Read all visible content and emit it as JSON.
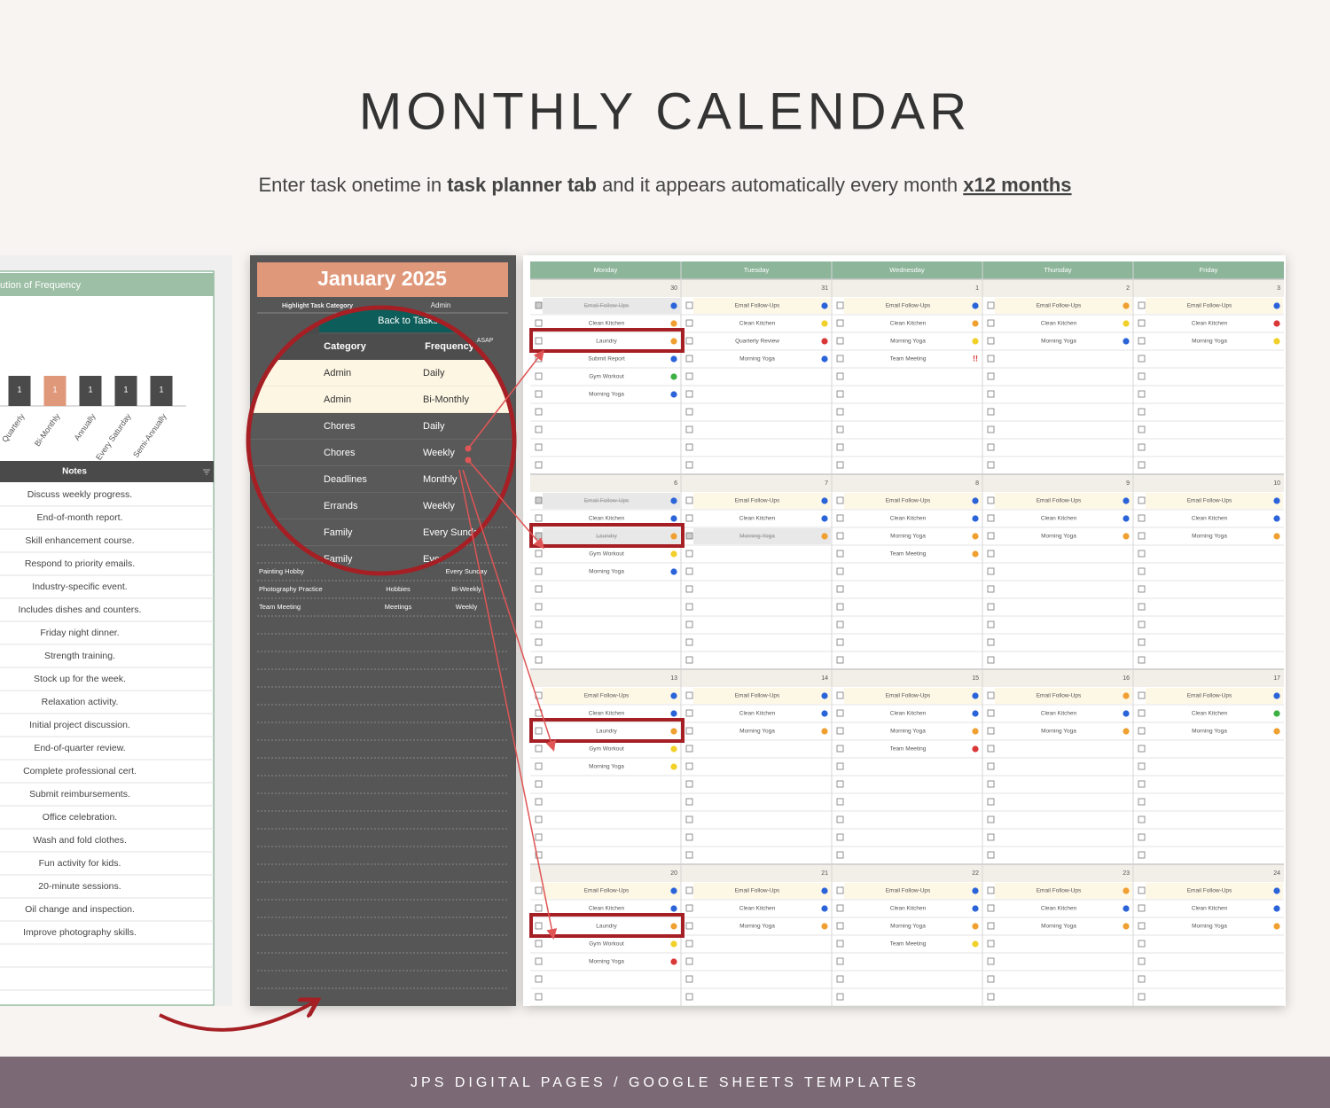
{
  "header": {
    "title": "MONTHLY CALENDAR",
    "subtitle": [
      {
        "text": "Enter task onetime in ",
        "bold": false,
        "underline": false
      },
      {
        "text": "task planner tab",
        "bold": true,
        "underline": false
      },
      {
        "text": " and it appears automatically every month ",
        "bold": false,
        "underline": false
      },
      {
        "text": "x12 months",
        "bold": true,
        "underline": true
      }
    ]
  },
  "frequency_chart": {
    "type": "bar",
    "title": "ution of Frequency",
    "categories": [
      "Quarterly",
      "Bi-Monthly",
      "Annually",
      "Every Saturday",
      "Semi-Annually"
    ],
    "values": [
      1,
      1,
      1,
      1,
      1
    ],
    "colors": [
      "#4a4a4a",
      "#e0987a",
      "#4a4a4a",
      "#4a4a4a",
      "#4a4a4a"
    ]
  },
  "notes": {
    "header": "Notes",
    "items": [
      "Discuss weekly progress.",
      "End-of-month report.",
      "Skill enhancement course.",
      "Respond to priority emails.",
      "Industry-specific event.",
      "Includes dishes and counters.",
      "Friday night dinner.",
      "Strength training.",
      "Stock up for the week.",
      "Relaxation activity.",
      "Initial project discussion.",
      "End-of-quarter review.",
      "Complete professional cert.",
      "Submit reimbursements.",
      "Office celebration.",
      "Wash and fold clothes.",
      "Fun activity for kids.",
      "20-minute sessions.",
      "Oil change and inspection.",
      "Improve photography skills."
    ]
  },
  "planner": {
    "title": "January 2025",
    "filter_label": "Highlight Task Category",
    "filter_value": "Admin",
    "back_button": "Back to Tasks",
    "sort_value": "ASAP",
    "columns": [
      "Category",
      "Frequency"
    ],
    "rows": [
      [
        "Admin",
        "Daily"
      ],
      [
        "Admin",
        "Bi-Monthly"
      ],
      [
        "Chores",
        "Daily"
      ],
      [
        "Chores",
        "Weekly"
      ],
      [
        "Deadlines",
        "Monthly"
      ],
      [
        "Errands",
        "Weekly"
      ],
      [
        "Family",
        "Every Sunday"
      ],
      [
        "Family",
        "Every Sunday"
      ]
    ],
    "tasks": [
      {
        "name": "Painting Hobby",
        "frequency": "Every Sunday"
      },
      {
        "name": "Photography Practice",
        "category": "Hobbies",
        "frequency": "Bi-Weekly"
      },
      {
        "name": "Team Meeting",
        "category": "Meetings",
        "frequency": "Weekly"
      }
    ]
  },
  "calendar": {
    "days": [
      "Monday",
      "Tuesday",
      "Wednesday",
      "Thursday",
      "Friday"
    ],
    "weeks": [
      {
        "dates": [
          30,
          31,
          1,
          2,
          3
        ],
        "cells": [
          [
            {
              "task": "Email Follow-Ups",
              "dot": "#2b63d9",
              "done": true
            },
            {
              "task": "Clean Kitchen",
              "dot": "#f0a030"
            },
            {
              "task": "Laundry",
              "dot": "#f0a030"
            },
            {
              "task": "Submit Report",
              "dot": "#2b63d9"
            },
            {
              "task": "Gym Workout",
              "dot": "#3cb043"
            },
            {
              "task": "Morning Yoga",
              "dot": "#2b63d9"
            }
          ],
          [
            {
              "task": "Email Follow-Ups",
              "dot": "#2b63d9"
            },
            {
              "task": "Clean Kitchen",
              "dot": "#f2d02a"
            },
            {
              "task": "Quarterly Review",
              "dot": "#d93838"
            },
            {
              "task": "Morning Yoga",
              "dot": "#2b63d9"
            }
          ],
          [
            {
              "task": "Email Follow-Ups",
              "dot": "#2b63d9"
            },
            {
              "task": "Clean Kitchen",
              "dot": "#f0a030"
            },
            {
              "task": "Morning Yoga",
              "dot": "#f2d02a"
            },
            {
              "task": "Team Meeting",
              "flag": "!!"
            }
          ],
          [
            {
              "task": "Email Follow-Ups",
              "dot": "#f0a030"
            },
            {
              "task": "Clean Kitchen",
              "dot": "#f2d02a"
            },
            {
              "task": "Morning Yoga",
              "dot": "#2b63d9"
            }
          ],
          [
            {
              "task": "Email Follow-Ups",
              "dot": "#2b63d9"
            },
            {
              "task": "Clean Kitchen",
              "dot": "#d93838"
            },
            {
              "task": "Morning Yoga",
              "dot": "#f2d02a"
            }
          ]
        ]
      },
      {
        "dates": [
          6,
          7,
          8,
          9,
          10
        ],
        "cells": [
          [
            {
              "task": "Email Follow-Ups",
              "dot": "#2b63d9",
              "done": true
            },
            {
              "task": "Clean Kitchen",
              "dot": "#2b63d9"
            },
            {
              "task": "Laundry",
              "dot": "#f0a030",
              "done": true
            },
            {
              "task": "Gym Workout",
              "dot": "#f2d02a"
            },
            {
              "task": "Morning Yoga",
              "dot": "#2b63d9"
            }
          ],
          [
            {
              "task": "Email Follow-Ups",
              "dot": "#2b63d9"
            },
            {
              "task": "Clean Kitchen",
              "dot": "#2b63d9"
            },
            {
              "task": "Morning Yoga",
              "dot": "#f0a030",
              "done": true
            }
          ],
          [
            {
              "task": "Email Follow-Ups",
              "dot": "#2b63d9"
            },
            {
              "task": "Clean Kitchen",
              "dot": "#2b63d9"
            },
            {
              "task": "Morning Yoga",
              "dot": "#f0a030"
            },
            {
              "task": "Team Meeting",
              "dot": "#f0a030"
            }
          ],
          [
            {
              "task": "Email Follow-Ups",
              "dot": "#2b63d9"
            },
            {
              "task": "Clean Kitchen",
              "dot": "#2b63d9"
            },
            {
              "task": "Morning Yoga",
              "dot": "#f0a030"
            }
          ],
          [
            {
              "task": "Email Follow-Ups",
              "dot": "#2b63d9"
            },
            {
              "task": "Clean Kitchen",
              "dot": "#2b63d9"
            },
            {
              "task": "Morning Yoga",
              "dot": "#f0a030"
            }
          ]
        ]
      },
      {
        "dates": [
          13,
          14,
          15,
          16,
          17
        ],
        "cells": [
          [
            {
              "task": "Email Follow-Ups",
              "dot": "#2b63d9"
            },
            {
              "task": "Clean Kitchen",
              "dot": "#2b63d9"
            },
            {
              "task": "Laundry",
              "dot": "#f0a030"
            },
            {
              "task": "Gym Workout",
              "dot": "#f2d02a"
            },
            {
              "task": "Morning Yoga",
              "dot": "#f2d02a"
            }
          ],
          [
            {
              "task": "Email Follow-Ups",
              "dot": "#2b63d9"
            },
            {
              "task": "Clean Kitchen",
              "dot": "#2b63d9"
            },
            {
              "task": "Morning Yoga",
              "dot": "#f0a030"
            }
          ],
          [
            {
              "task": "Email Follow-Ups",
              "dot": "#2b63d9"
            },
            {
              "task": "Clean Kitchen",
              "dot": "#2b63d9"
            },
            {
              "task": "Morning Yoga",
              "dot": "#f0a030"
            },
            {
              "task": "Team Meeting",
              "dot": "#d93838"
            }
          ],
          [
            {
              "task": "Email Follow-Ups",
              "dot": "#f0a030"
            },
            {
              "task": "Clean Kitchen",
              "dot": "#2b63d9"
            },
            {
              "task": "Morning Yoga",
              "dot": "#f0a030"
            }
          ],
          [
            {
              "task": "Email Follow-Ups",
              "dot": "#2b63d9"
            },
            {
              "task": "Clean Kitchen",
              "dot": "#3cb043"
            },
            {
              "task": "Morning Yoga",
              "dot": "#f0a030"
            }
          ]
        ]
      },
      {
        "dates": [
          20,
          21,
          22,
          23,
          24
        ],
        "cells": [
          [
            {
              "task": "Email Follow-Ups",
              "dot": "#2b63d9"
            },
            {
              "task": "Clean Kitchen",
              "dot": "#2b63d9"
            },
            {
              "task": "Laundry",
              "dot": "#f0a030"
            },
            {
              "task": "Gym Workout",
              "dot": "#f2d02a"
            },
            {
              "task": "Morning Yoga",
              "dot": "#d93838"
            }
          ],
          [
            {
              "task": "Email Follow-Ups",
              "dot": "#2b63d9"
            },
            {
              "task": "Clean Kitchen",
              "dot": "#2b63d9"
            },
            {
              "task": "Morning Yoga",
              "dot": "#f0a030"
            }
          ],
          [
            {
              "task": "Email Follow-Ups",
              "dot": "#2b63d9"
            },
            {
              "task": "Clean Kitchen",
              "dot": "#2b63d9"
            },
            {
              "task": "Morning Yoga",
              "dot": "#f0a030"
            },
            {
              "task": "Team Meeting",
              "dot": "#f2d02a"
            }
          ],
          [
            {
              "task": "Email Follow-Ups",
              "dot": "#f0a030"
            },
            {
              "task": "Clean Kitchen",
              "dot": "#2b63d9"
            },
            {
              "task": "Morning Yoga",
              "dot": "#f0a030"
            }
          ],
          [
            {
              "task": "Email Follow-Ups",
              "dot": "#2b63d9"
            },
            {
              "task": "Clean Kitchen",
              "dot": "#2b63d9"
            },
            {
              "task": "Morning Yoga",
              "dot": "#f0a030"
            }
          ]
        ]
      }
    ]
  },
  "footer": "JPS DIGITAL PAGES / GOOGLE SHEETS TEMPLATES"
}
